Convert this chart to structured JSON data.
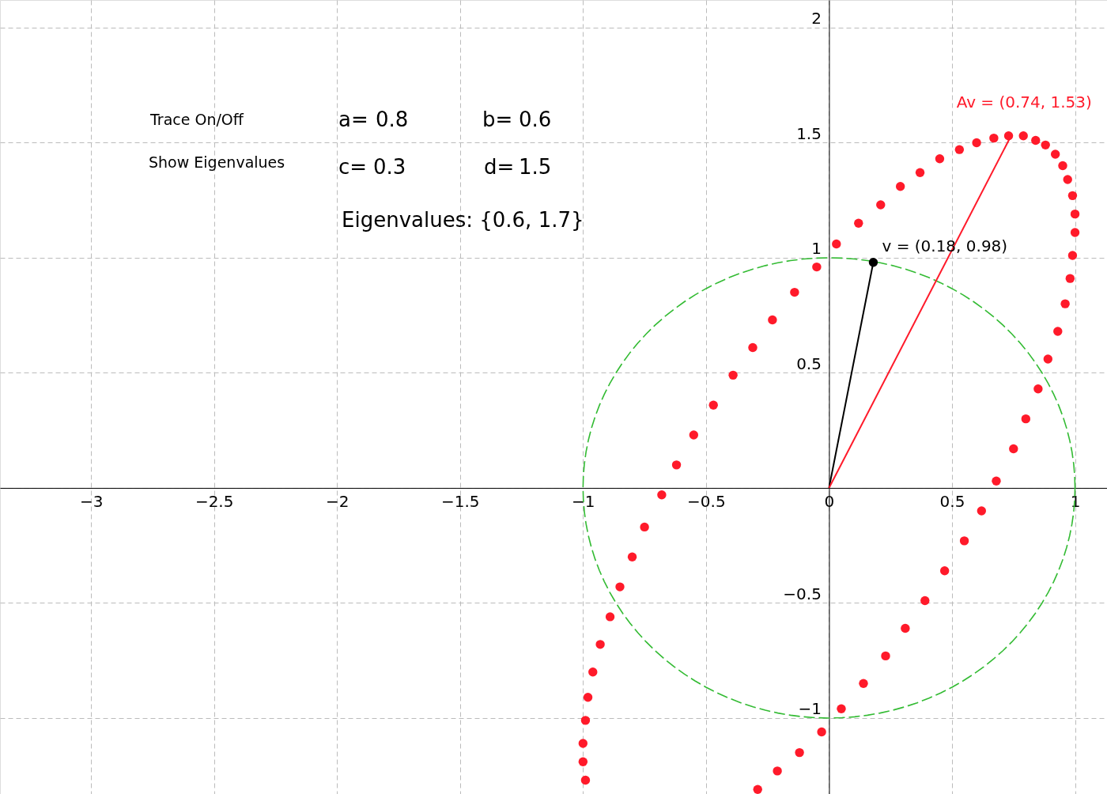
{
  "chart_data": {
    "type": "scatter",
    "xlim": [
      -3.37,
      1.13
    ],
    "ylim": [
      -1.33,
      2.12
    ],
    "xticks": [
      {
        "value": -3,
        "label": "−3"
      },
      {
        "value": -2.5,
        "label": "−2.5"
      },
      {
        "value": -2,
        "label": "−2"
      },
      {
        "value": -1.5,
        "label": "−1.5"
      },
      {
        "value": -1,
        "label": "−1"
      },
      {
        "value": -0.5,
        "label": "−0.5"
      },
      0,
      0.5,
      1
    ],
    "yticks": [
      {
        "value": -1,
        "label": "−1"
      },
      {
        "value": -0.5,
        "label": "−0.5"
      },
      {
        "value": 0,
        "label": null
      },
      0.5,
      1,
      1.5,
      2
    ],
    "grid": true,
    "series": [
      {
        "marker": "circle",
        "color": "#ff1a2a",
        "x": [
          0.8,
          0.85,
          0.89,
          0.93,
          0.96,
          0.98,
          0.99,
          1.0,
          1.0,
          0.99,
          0.97,
          0.95,
          0.92,
          0.88,
          0.84,
          0.79,
          0.73,
          0.67,
          0.6,
          0.53,
          0.45,
          0.37,
          0.29,
          0.21,
          0.12,
          0.03,
          -0.05,
          -0.14,
          -0.23,
          -0.31,
          -0.39,
          -0.47,
          -0.55,
          -0.62,
          -0.68,
          -0.75,
          -0.8,
          -0.85,
          -0.89,
          -0.93,
          -0.96,
          -0.98,
          -0.99,
          -1.0,
          -1.0,
          -0.99,
          -0.29,
          -0.21,
          -0.12,
          -0.03,
          0.05,
          0.14,
          0.23,
          0.31,
          0.39,
          0.47,
          0.55,
          0.62,
          0.68,
          0.75
        ],
        "values": [
          0.3,
          0.43,
          0.56,
          0.68,
          0.8,
          0.91,
          1.01,
          1.11,
          1.19,
          1.27,
          1.34,
          1.4,
          1.45,
          1.49,
          1.51,
          1.53,
          1.53,
          1.52,
          1.5,
          1.47,
          1.43,
          1.37,
          1.31,
          1.23,
          1.15,
          1.06,
          0.96,
          0.85,
          0.73,
          0.61,
          0.49,
          0.36,
          0.23,
          0.1,
          -0.03,
          -0.17,
          -0.3,
          -0.43,
          -0.56,
          -0.68,
          -0.8,
          -0.91,
          -1.01,
          -1.11,
          -1.19,
          -1.27,
          -1.31,
          -1.23,
          -1.15,
          -1.06,
          -0.96,
          -0.85,
          -0.73,
          -0.61,
          -0.49,
          -0.36,
          -0.23,
          -0.1,
          0.03,
          0.17
        ]
      },
      {
        "type": "line",
        "line_style": "solid",
        "color": "#000000",
        "x": [
          0,
          0.18
        ],
        "values": [
          0,
          0.98
        ]
      },
      {
        "type": "line",
        "line_style": "solid",
        "color": "#ff1a2a",
        "x": [
          0,
          0.74
        ],
        "values": [
          0,
          1.53
        ]
      },
      {
        "type": "scatter",
        "marker": "circle",
        "color": "#000000",
        "x": [
          0.18
        ],
        "values": [
          0.98
        ]
      }
    ],
    "annotations": [
      {
        "text": "v = (0.18, 0.98)",
        "x": 0.18,
        "y": 0.98
      },
      {
        "text": "Av = (0.74, 1.53)",
        "x": 0.74,
        "y": 1.53
      },
      "Trace On/Off",
      "Show Eigenvalues",
      "a=",
      "0.8",
      "b=",
      "0.6",
      "c=",
      "0.3",
      "d=",
      "1.5",
      "Eigenvalues: {0.6, 1.7}"
    ]
  }
}
